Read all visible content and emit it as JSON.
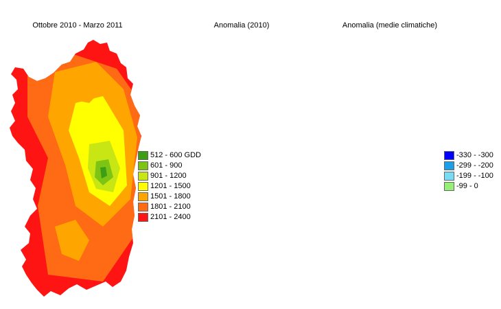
{
  "panels": [
    {
      "title": "Ottobre 2010 - Marzo 2011",
      "legend": [
        {
          "label": "512 - 600 GDD",
          "color": "#3c9e14"
        },
        {
          "label": "601 - 900",
          "color": "#7dc414"
        },
        {
          "label": "901 - 1200",
          "color": "#c8e614"
        },
        {
          "label": "1201 - 1500",
          "color": "#ffff00"
        },
        {
          "label": "1501 - 1800",
          "color": "#ffa500"
        },
        {
          "label": "1801 - 2100",
          "color": "#ff6a14"
        },
        {
          "label": "2101 - 2400",
          "color": "#ff1414"
        }
      ]
    },
    {
      "title": "Anomalia (2010)"
    },
    {
      "title": "Anomalia (medie climatiche)",
      "legend": [
        {
          "label": "-330 - -300",
          "color": "#0000ff"
        },
        {
          "label": "-299 - -200",
          "color": "#1e9ee6"
        },
        {
          "label": "-199 - -100",
          "color": "#78dcf5"
        },
        {
          "label": "-99 - 0",
          "color": "#96f078"
        }
      ]
    }
  ]
}
